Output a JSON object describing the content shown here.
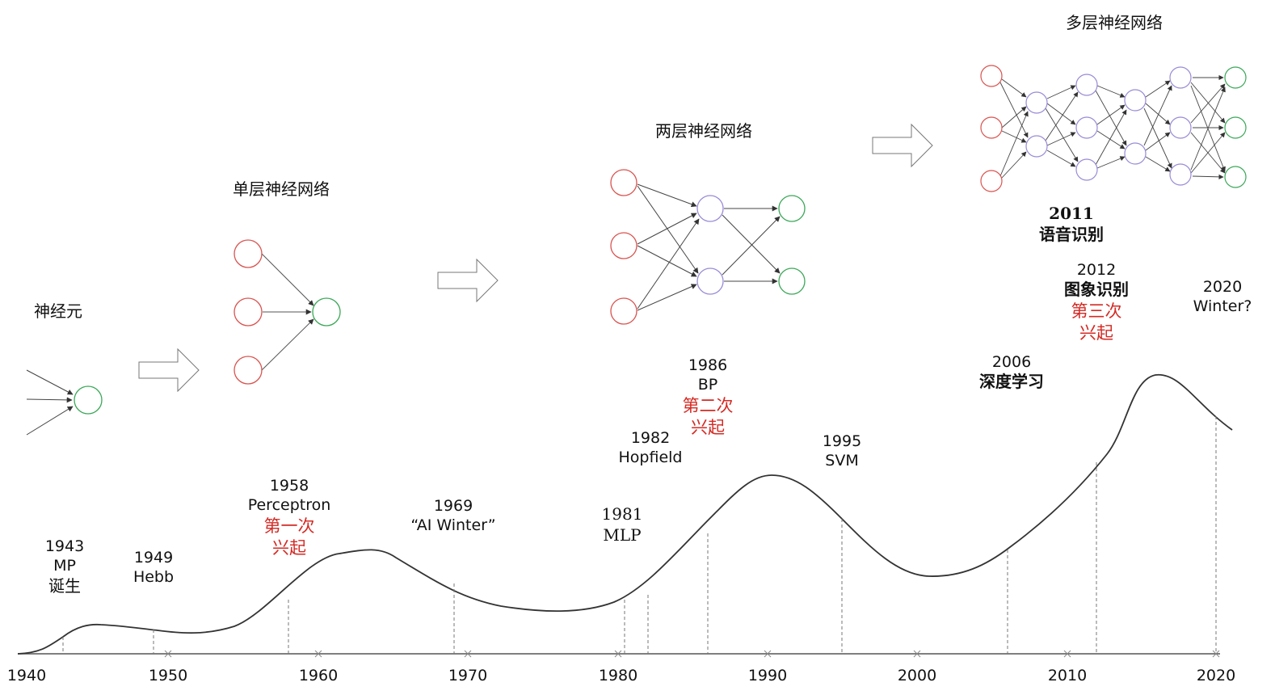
{
  "titles": {
    "neuron": "神经元",
    "single_layer": "单层神经网络",
    "two_layer": "两层神经网络",
    "multi_layer": "多层神经网络"
  },
  "events": {
    "e1943": {
      "year": "1943",
      "name": "MP",
      "note": "诞生"
    },
    "e1949": {
      "year": "1949",
      "name": "Hebb"
    },
    "e1958": {
      "year": "1958",
      "name": "Perceptron",
      "wave": "第一次",
      "wave2": "兴起"
    },
    "e1969": {
      "year": "1969",
      "name": "“AI Winter”"
    },
    "e1981": {
      "year": "1981",
      "name": "MLP"
    },
    "e1982": {
      "year": "1982",
      "name": "Hopfield"
    },
    "e1986": {
      "year": "1986",
      "name": "BP",
      "wave": "第二次",
      "wave2": "兴起"
    },
    "e1995": {
      "year": "1995",
      "name": "SVM"
    },
    "e2006": {
      "year": "2006",
      "name": "深度学习"
    },
    "e2011": {
      "year": "2011",
      "name": "语音识别"
    },
    "e2012": {
      "year": "2012",
      "name": "图象识别",
      "wave": "第三次",
      "wave2": "兴起"
    },
    "e2020": {
      "year": "2020",
      "name": "Winter?"
    }
  },
  "axis": {
    "ticks": [
      "1940",
      "1950",
      "1960",
      "1970",
      "1980",
      "1990",
      "2000",
      "2010",
      "2020"
    ]
  },
  "colors": {
    "input_node": "#d9534f",
    "hidden_node": "#9a8ad6",
    "output_node": "#3aa757",
    "wave_text": "#d42a24",
    "curve": "#333333"
  }
}
